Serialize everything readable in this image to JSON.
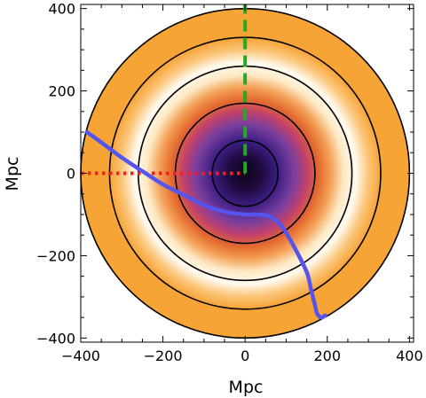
{
  "chart_data": {
    "type": "heatmap",
    "title": "",
    "xlabel": "Mpc",
    "ylabel": "Mpc",
    "xlim": [
      -400,
      410
    ],
    "ylim": [
      -410,
      410
    ],
    "x_ticks": [
      -400,
      -200,
      0,
      200,
      400
    ],
    "y_ticks": [
      -400,
      -200,
      0,
      200,
      400
    ],
    "x_tick_labels": [
      "−400",
      "−200",
      "0",
      "200",
      "400"
    ],
    "y_tick_labels": [
      "−400",
      "−200",
      "0",
      "200",
      "400"
    ],
    "grid": false,
    "legend": "none",
    "disk_radius": 400,
    "contour_radii": [
      80,
      170,
      260,
      330,
      400
    ],
    "radial_profile": {
      "r": [
        0,
        40,
        80,
        120,
        150,
        180,
        210,
        240,
        270,
        300,
        330,
        400
      ],
      "color": [
        "#0c0418",
        "#1e0a3d",
        "#3d1e84",
        "#7a3f9e",
        "#c0406e",
        "#e46a2e",
        "#f4a259",
        "#fde9c4",
        "#fffaf0",
        "#fbc67a",
        "#f7a437",
        "#f7a437"
      ]
    },
    "series": [
      {
        "style": "dotted",
        "color": "#ff1a1a",
        "x": [
          -400,
          0
        ],
        "y": [
          0,
          0
        ]
      },
      {
        "style": "dashed",
        "color": "#23a923",
        "x": [
          0,
          0
        ],
        "y": [
          0,
          410
        ]
      },
      {
        "style": "solid",
        "color": "#5555ee",
        "x": [
          -385,
          -350,
          -300,
          -250,
          -200,
          -150,
          -100,
          -50,
          0,
          30,
          60,
          90,
          120,
          150,
          160,
          170,
          175,
          185,
          195
        ],
        "y": [
          100,
          75,
          38,
          5,
          -27,
          -52,
          -77,
          -93,
          -100,
          -100,
          -105,
          -130,
          -180,
          -240,
          -280,
          -320,
          -340,
          -350,
          -345
        ]
      }
    ]
  }
}
